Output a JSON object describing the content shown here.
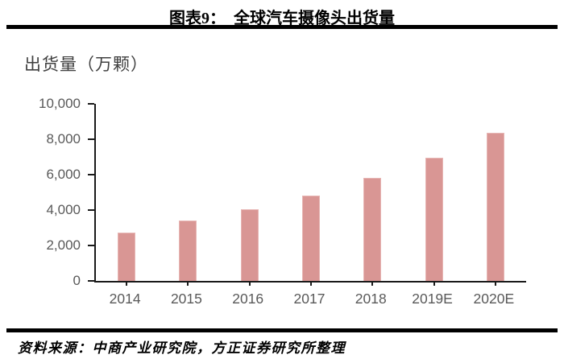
{
  "header": {
    "title": "图表9：  全球汽车摄像头出货量"
  },
  "footer": {
    "source": "资料来源：中商产业研究院，方正证券研究所整理"
  },
  "chart_data": {
    "type": "bar",
    "title": "图表9： 全球汽车摄像头出货量",
    "axis_title": "出货量（万颗）",
    "categories": [
      "2014",
      "2015",
      "2016",
      "2017",
      "2018",
      "2019E",
      "2020E"
    ],
    "values": [
      2750,
      3400,
      4050,
      4830,
      5830,
      6950,
      8350
    ],
    "xlabel": "",
    "ylabel": "出货量（万颗）",
    "ylim": [
      0,
      10000
    ],
    "yticks": [
      {
        "value": 0,
        "label": "0"
      },
      {
        "value": 2000,
        "label": "2,000"
      },
      {
        "value": 4000,
        "label": "4,000"
      },
      {
        "value": 6000,
        "label": "6,000"
      },
      {
        "value": 8000,
        "label": "8,000"
      },
      {
        "value": 10000,
        "label": "10,000"
      }
    ],
    "grid": false,
    "legend": "none",
    "bar_color": "#d99694",
    "bar_border_color": "#e7b6b4",
    "axis_line_color": "#1a1a1a",
    "tick_label_color": "#595959"
  }
}
